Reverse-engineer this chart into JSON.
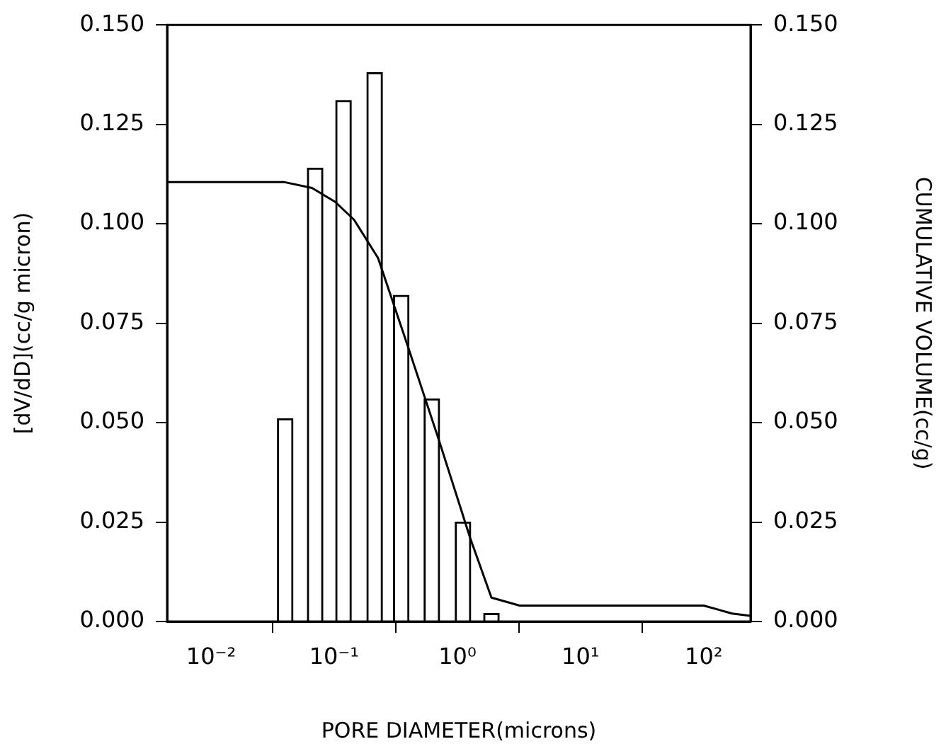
{
  "chart_data": {
    "type": "bar",
    "xlabel": "PORE DIAMETER(microns)",
    "ylabel": "[dV/dD](cc/g micron)",
    "y2label": "CUMULATIVE VOLUME(cc/g)",
    "log": "x",
    "xlim": [
      0.0044,
      240
    ],
    "xticks": [
      {
        "value": 0.01,
        "label": "10⁻²"
      },
      {
        "value": 0.1,
        "label": "10⁻¹"
      },
      {
        "value": 1,
        "label": "10⁰"
      },
      {
        "value": 10,
        "label": "10¹"
      },
      {
        "value": 100,
        "label": "10²"
      }
    ],
    "ylim": [
      0,
      0.15
    ],
    "yticks": [
      {
        "value": 0,
        "label": "0.000"
      },
      {
        "value": 0.025,
        "label": "0.025"
      },
      {
        "value": 0.05,
        "label": "0.050"
      },
      {
        "value": 0.075,
        "label": "0.075"
      },
      {
        "value": 0.1,
        "label": "0.100"
      },
      {
        "value": 0.125,
        "label": "0.125"
      },
      {
        "value": 0.15,
        "label": "0.150"
      }
    ],
    "y2lim": [
      0,
      0.15
    ],
    "y2ticks": [
      {
        "value": 0,
        "label": "0.000"
      },
      {
        "value": 0.025,
        "label": "0.025"
      },
      {
        "value": 0.05,
        "label": "0.050"
      },
      {
        "value": 0.075,
        "label": "0.075"
      },
      {
        "value": 0.1,
        "label": "0.100"
      },
      {
        "value": 0.125,
        "label": "0.125"
      },
      {
        "value": 0.15,
        "label": "0.150"
      }
    ],
    "grid": false,
    "legend": false,
    "series": [
      {
        "color": "#ffffff",
        "x": [
          0.04,
          0.07,
          0.119,
          0.213,
          0.35,
          0.62,
          1.11,
          1.89
        ],
        "values": [
          0.051,
          0.114,
          0.131,
          0.138,
          0.082,
          0.056,
          0.025,
          0.002
        ]
      },
      {
        "type": "line",
        "axis": "y2",
        "color": "#000000",
        "x": [
          0.0044,
          0.039,
          0.066,
          0.102,
          0.145,
          0.227,
          0.398,
          0.71,
          1.27,
          1.89,
          3.2,
          100,
          170,
          240
        ],
        "values": [
          0.1105,
          0.1105,
          0.109,
          0.1055,
          0.101,
          0.0914,
          0.069,
          0.0455,
          0.021,
          0.006,
          0.004,
          0.004,
          0.002,
          0.0014
        ]
      }
    ]
  }
}
